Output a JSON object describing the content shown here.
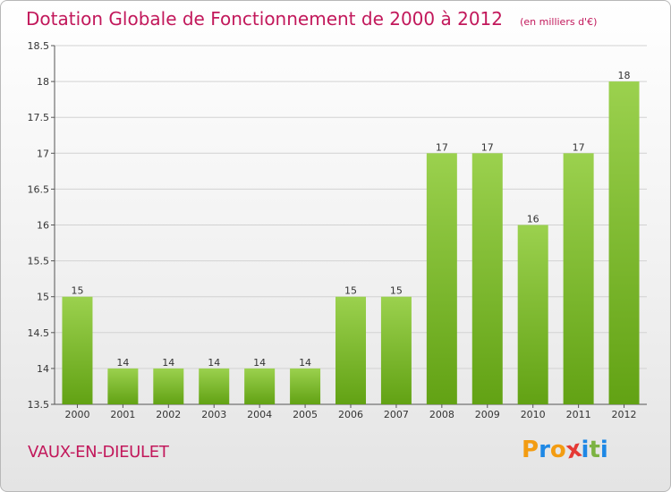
{
  "title": "Dotation Globale de Fonctionnement de 2000 à 2012",
  "subtitle": "(en milliers d'€)",
  "location": "VAUX-EN-DIEULET",
  "logo": {
    "text": "Proxiti",
    "letters": [
      "P",
      "r",
      "o",
      "x",
      "i",
      "t",
      "i"
    ],
    "colors": [
      "#f39c12",
      "#1e88e5",
      "#f39c12",
      "#e53935",
      "#1e88e5",
      "#7cb342",
      "#1e88e5"
    ]
  },
  "colors": {
    "title": "#c2185b",
    "bar_top": "#9bd14e",
    "bar_bottom": "#62a214",
    "grid": "#d2d2d2",
    "axis": "#555555"
  },
  "chart_data": {
    "type": "bar",
    "title": "Dotation Globale de Fonctionnement de 2000 à 2012",
    "subtitle": "(en milliers d'€)",
    "xlabel": "",
    "ylabel": "",
    "categories": [
      "2000",
      "2001",
      "2002",
      "2003",
      "2004",
      "2005",
      "2006",
      "2007",
      "2008",
      "2009",
      "2010",
      "2011",
      "2012"
    ],
    "values": [
      15,
      14,
      14,
      14,
      14,
      14,
      15,
      15,
      17,
      17,
      16,
      17,
      18
    ],
    "ylim": [
      13.5,
      18.5
    ],
    "yticks": [
      "13.5",
      "14",
      "14.5",
      "15",
      "15.5",
      "16",
      "16.5",
      "17",
      "17.5",
      "18",
      "18.5"
    ],
    "grid": true,
    "legend": "none"
  }
}
